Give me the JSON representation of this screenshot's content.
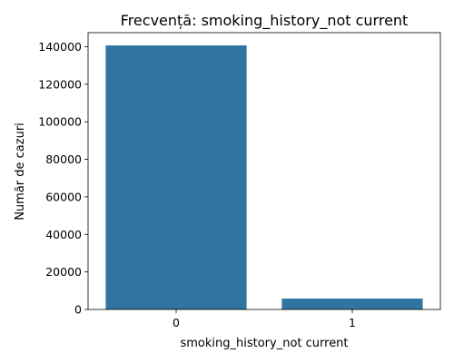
{
  "chart_data": {
    "type": "bar",
    "title": "Frecvență: smoking_history_not current",
    "xlabel": "smoking_history_not current",
    "ylabel": "Număr de cazuri",
    "categories": [
      "0",
      "1"
    ],
    "values": [
      140700,
      5800
    ],
    "ylim": [
      0,
      147500
    ],
    "yticks": [
      0,
      20000,
      40000,
      60000,
      80000,
      100000,
      120000,
      140000
    ],
    "grid": false,
    "legend": "none",
    "bar_color": "#3274a1"
  }
}
